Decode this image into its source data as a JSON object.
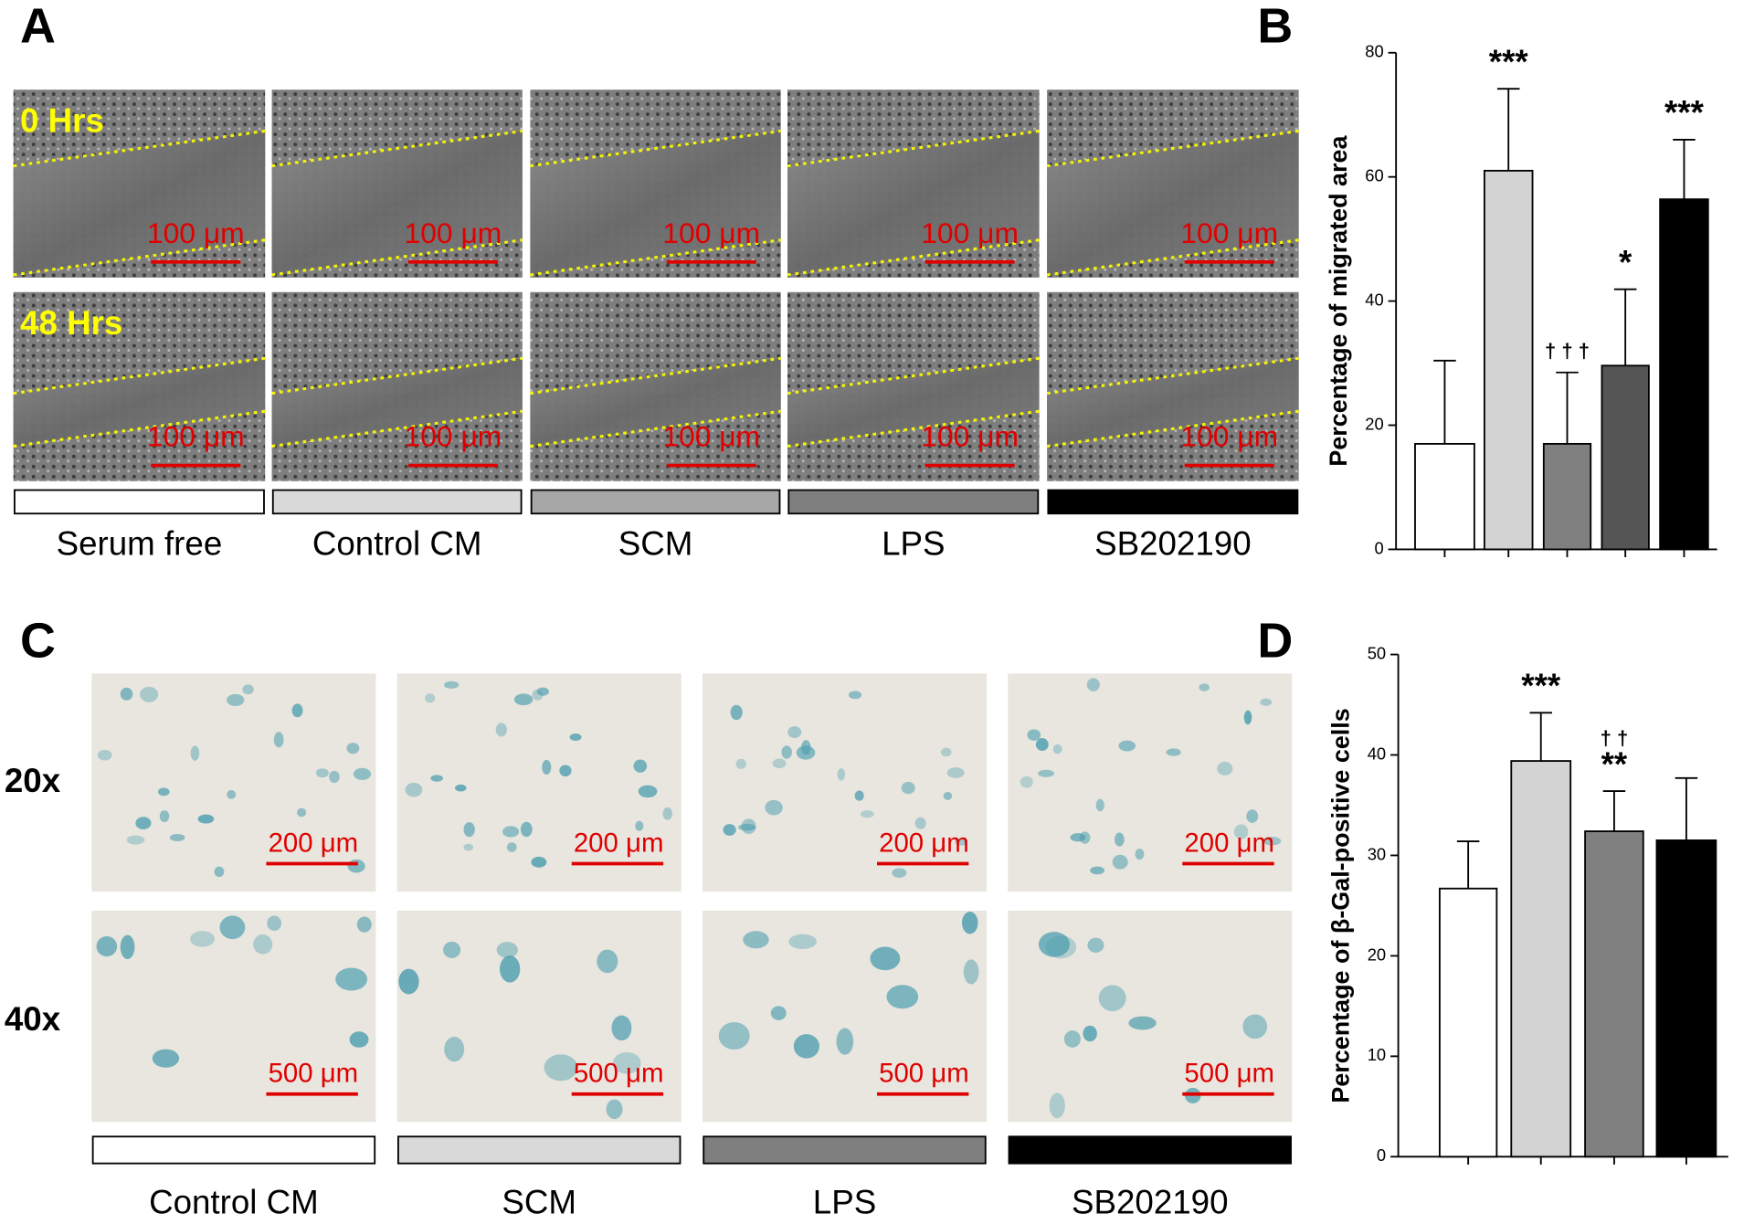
{
  "panels": {
    "A": {
      "label": "A",
      "times": [
        "0 Hrs",
        "48 Hrs"
      ],
      "scale_bars": [
        [
          "100 μm",
          "100 μm",
          "100 μm",
          "100 μm",
          "100 μm"
        ],
        [
          "100 μm",
          "100 μm",
          "100 μm",
          "100 μm",
          "100 μm"
        ]
      ],
      "groups": [
        "Serum free",
        "Control CM",
        "SCM",
        "LPS",
        "SB202190"
      ],
      "group_colors": [
        "#ffffff",
        "#d9d9d9",
        "#a6a6a6",
        "#7f7f7f",
        "#000000"
      ]
    },
    "C": {
      "label": "C",
      "magnifications": [
        "20x",
        "40x"
      ],
      "scale_bars": [
        [
          "200 μm",
          "200 μm",
          "200 μm",
          "200 μm"
        ],
        [
          "500 μm",
          "500 μm",
          "500 μm",
          "500 μm"
        ]
      ],
      "groups": [
        "Control CM",
        "SCM",
        "LPS",
        "SB202190"
      ],
      "group_colors": [
        "#ffffff",
        "#d9d9d9",
        "#7f7f7f",
        "#000000"
      ]
    }
  },
  "chart_data": [
    {
      "type": "bar",
      "panel_label": "B",
      "y_label": "Percentage of migrated  area",
      "values": [
        17,
        61,
        17,
        29.6,
        56.4
      ],
      "errors": [
        13.4,
        13.2,
        11.5,
        12.3,
        9.6
      ],
      "colors": [
        "#ffffff",
        "#d3d3d3",
        "#808080",
        "#555555",
        "#000000"
      ],
      "annotations": [
        [],
        [
          "***"
        ],
        [
          "† † †"
        ],
        [
          "*"
        ],
        [
          "***"
        ]
      ],
      "ylim": [
        0,
        80
      ],
      "yticks": [
        0,
        20,
        40,
        60,
        80
      ]
    },
    {
      "type": "bar",
      "panel_label": "D",
      "y_label": "Percentage of β-Gal-positive cells",
      "values": [
        26.7,
        39.4,
        32.4,
        31.5
      ],
      "errors": [
        4.7,
        4.8,
        4.0,
        6.2
      ],
      "colors": [
        "#ffffff",
        "#d3d3d3",
        "#808080",
        "#000000"
      ],
      "annotations": [
        [],
        [
          "***"
        ],
        [
          "† †",
          "**"
        ],
        []
      ],
      "ylim": [
        0,
        50
      ],
      "yticks": [
        0,
        10,
        20,
        30,
        40,
        50
      ]
    }
  ]
}
